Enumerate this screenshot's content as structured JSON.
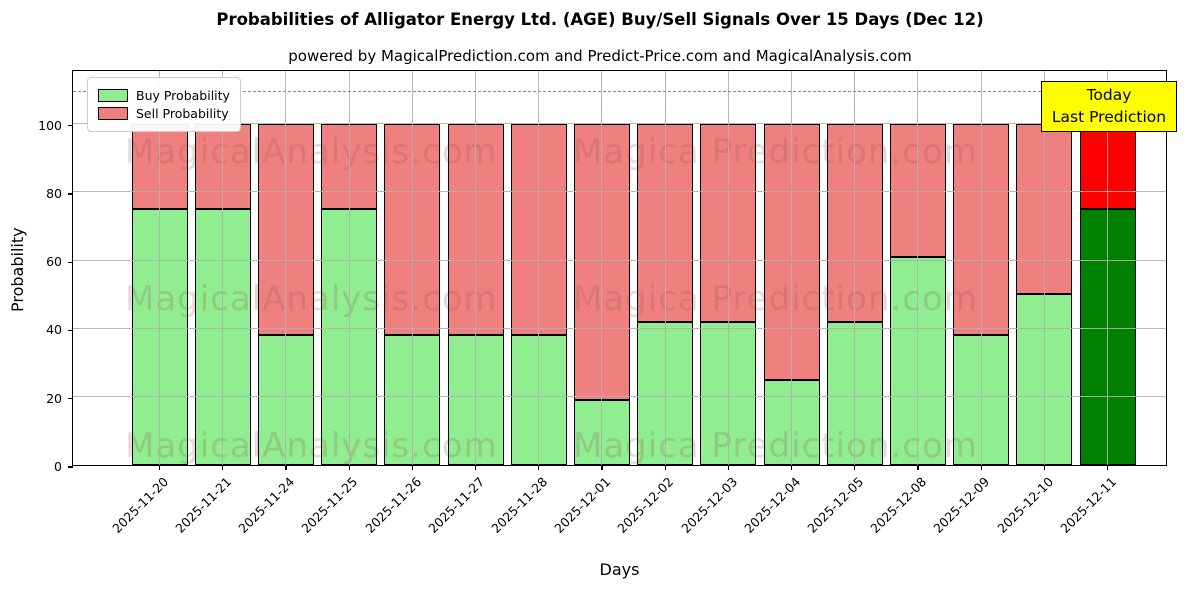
{
  "title": "Probabilities of Alligator Energy Ltd. (AGE) Buy/Sell Signals Over 15 Days (Dec 12)",
  "subtitle": "powered by MagicalPrediction.com and Predict-Price.com and MagicalAnalysis.com",
  "legend": {
    "items": [
      {
        "label": "Buy Probability",
        "color": "#90ee90"
      },
      {
        "label": "Sell Probability",
        "color": "#f08080"
      }
    ]
  },
  "annotation_box": {
    "line1": "Today",
    "line2": "Last Prediction",
    "bg": "#ffff00",
    "border": "#000000"
  },
  "watermark": {
    "left_text": "MagicalAnalysis.com",
    "right_text": "Magica Prediction.com"
  },
  "chart_data": {
    "type": "bar",
    "stacked": true,
    "title": "Probabilities of Alligator Energy Ltd. (AGE) Buy/Sell Signals Over 15 Days (Dec 12)",
    "xlabel": "Days",
    "ylabel": "Probability",
    "categories": [
      "2025-11-20",
      "2025-11-21",
      "2025-11-24",
      "2025-11-25",
      "2025-11-26",
      "2025-11-27",
      "2025-11-28",
      "2025-12-01",
      "2025-12-02",
      "2025-12-03",
      "2025-12-04",
      "2025-12-05",
      "2025-12-08",
      "2025-12-09",
      "2025-12-10",
      "2025-12-11"
    ],
    "series": [
      {
        "name": "Buy Probability",
        "color": "#90ee90",
        "values": [
          75,
          75,
          38,
          75,
          38,
          38,
          38,
          19,
          42,
          42,
          25,
          42,
          61,
          38,
          50,
          75
        ]
      },
      {
        "name": "Sell Probability",
        "color": "#f08080",
        "values": [
          25,
          25,
          62,
          25,
          62,
          62,
          62,
          81,
          58,
          58,
          75,
          58,
          39,
          62,
          50,
          25
        ]
      }
    ],
    "last_bar_highlight": {
      "buy_color": "#008000",
      "sell_color": "#ff0000"
    },
    "yticks": [
      0,
      20,
      40,
      60,
      80,
      100
    ],
    "ylim": [
      0,
      116
    ],
    "dashed_line_y": 110,
    "grid": true,
    "legend_position": "upper left"
  }
}
